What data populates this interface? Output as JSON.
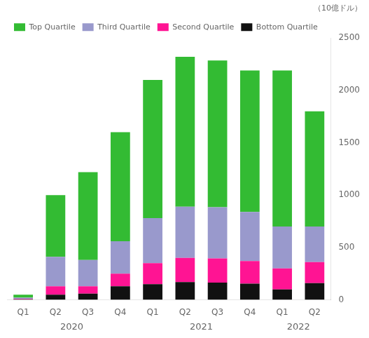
{
  "chart_data": {
    "type": "bar",
    "stacked": true,
    "categories": [
      "Q1",
      "Q2",
      "Q3",
      "Q4",
      "Q1",
      "Q2",
      "Q3",
      "Q4",
      "Q1",
      "Q2"
    ],
    "series": [
      {
        "name": "Bottom Quartile",
        "color": "#111111",
        "values": [
          5,
          50,
          60,
          130,
          150,
          170,
          165,
          155,
          100,
          160
        ]
      },
      {
        "name": "Second Quartile",
        "color": "#FF1493",
        "values": [
          5,
          80,
          70,
          120,
          200,
          230,
          230,
          215,
          200,
          200
        ]
      },
      {
        "name": "Third Quartile",
        "color": "#9999CC",
        "values": [
          10,
          280,
          250,
          310,
          430,
          490,
          490,
          470,
          400,
          340
        ]
      },
      {
        "name": "Top Quartile",
        "color": "#33BB33",
        "values": [
          30,
          590,
          840,
          1040,
          1320,
          1430,
          1400,
          1350,
          1490,
          1100
        ]
      }
    ],
    "ylim": [
      0,
      2500
    ],
    "yticks": [
      0,
      500,
      1000,
      1500,
      2000,
      2500
    ],
    "ylabel": "（10億ドル）",
    "annotations": [
      {
        "text": "2020",
        "x": 1.5
      },
      {
        "text": "2021",
        "x": 5.5
      },
      {
        "text": "2022",
        "x": 8.5
      }
    ],
    "legend": "upper left",
    "grid": false
  }
}
